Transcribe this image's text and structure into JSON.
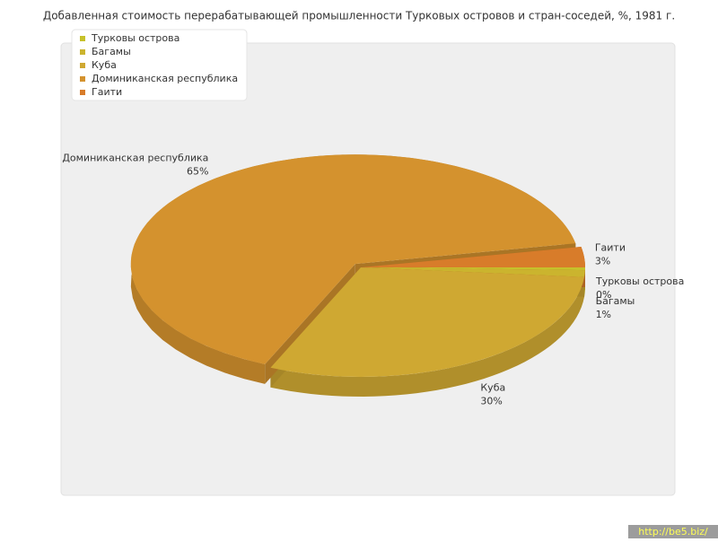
{
  "chart_data": {
    "type": "pie3d",
    "title": "Добавленная стоимость перерабатывающей промышленности Турковых островов и стран-соседей, %, 1981 г.",
    "categories": [
      "Турковы острова",
      "Багамы",
      "Куба",
      "Доминиканская республика",
      "Гаити"
    ],
    "values": [
      0.4,
      1,
      30,
      65,
      3
    ],
    "value_labels": [
      "0%",
      "1%",
      "30%",
      "65%",
      "3%"
    ],
    "colors": [
      "#c6c12a",
      "#cbb42e",
      "#cfa832",
      "#d4922e",
      "#d87c2a"
    ],
    "exploded": [
      false,
      false,
      false,
      true,
      false
    ]
  },
  "watermark": "http://be5.biz/"
}
